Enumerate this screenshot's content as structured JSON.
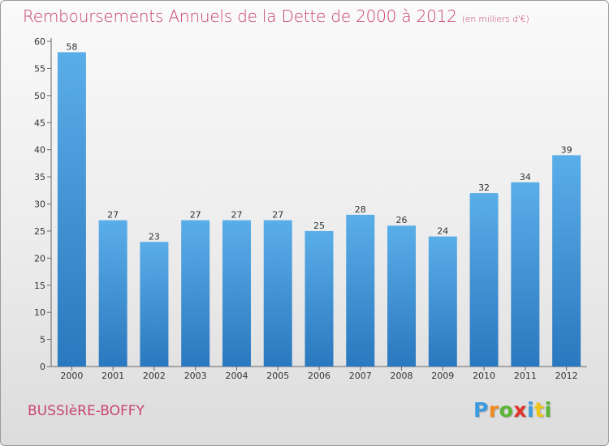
{
  "chart_data": {
    "type": "bar",
    "title": "Remboursements Annuels de la Dette de 2000 à 2012",
    "subtitle": "(en milliers d'€)",
    "xlabel": "",
    "ylabel": "",
    "categories": [
      "2000",
      "2001",
      "2002",
      "2003",
      "2004",
      "2005",
      "2006",
      "2007",
      "2008",
      "2009",
      "2010",
      "2011",
      "2012"
    ],
    "values": [
      58,
      27,
      23,
      27,
      27,
      27,
      25,
      28,
      26,
      24,
      32,
      34,
      39
    ],
    "ylim": [
      0,
      60
    ],
    "yticks": [
      0,
      5,
      10,
      15,
      20,
      25,
      30,
      35,
      40,
      45,
      50,
      55,
      60
    ],
    "grid": false,
    "bar_color_top": "#5aaee8",
    "bar_color_bottom": "#2a78bf"
  },
  "footer": {
    "town": "BUSSIèRE-BOFFY",
    "logo": [
      "P",
      "r",
      "o",
      "x",
      "i",
      "t",
      "i"
    ],
    "logo_colors": [
      "#3a9be0",
      "#f08a1c",
      "#5bb534",
      "#e0342a",
      "#3a9be0",
      "#f0c419",
      "#5bb534"
    ]
  },
  "colors": {
    "title": "#c8456e",
    "axis": "#666666"
  }
}
